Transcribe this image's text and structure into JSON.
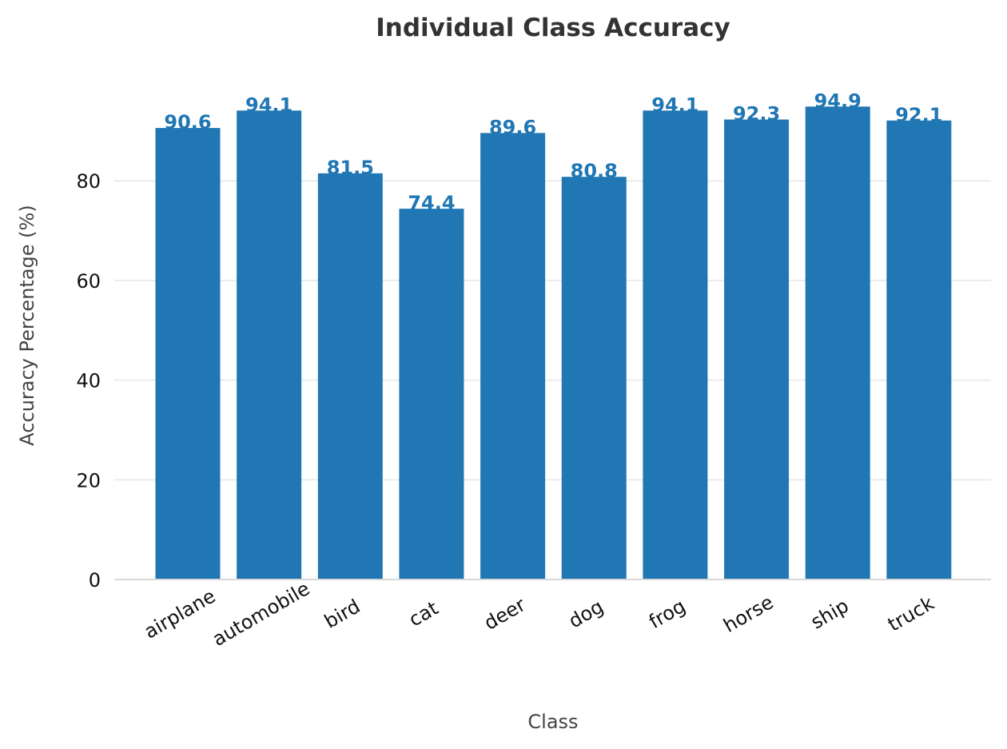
{
  "chart_data": {
    "type": "bar",
    "title": "Individual Class Accuracy",
    "xlabel": "Class",
    "ylabel": "Accuracy Percentage (%)",
    "categories": [
      "airplane",
      "automobile",
      "bird",
      "cat",
      "deer",
      "dog",
      "frog",
      "horse",
      "ship",
      "truck"
    ],
    "values": [
      90.6,
      94.1,
      81.5,
      74.4,
      89.6,
      80.8,
      94.1,
      92.3,
      94.9,
      92.1
    ],
    "value_labels": [
      "90.6",
      "94.1",
      "81.5",
      "74.4",
      "89.6",
      "80.8",
      "94.1",
      "92.3",
      "94.9",
      "92.1"
    ],
    "yticks": [
      0,
      20,
      40,
      60,
      80
    ],
    "ylim": [
      0,
      99.6
    ],
    "grid": "horizontal",
    "bar_color": "#2077b4",
    "label_color": "#2077b4"
  }
}
